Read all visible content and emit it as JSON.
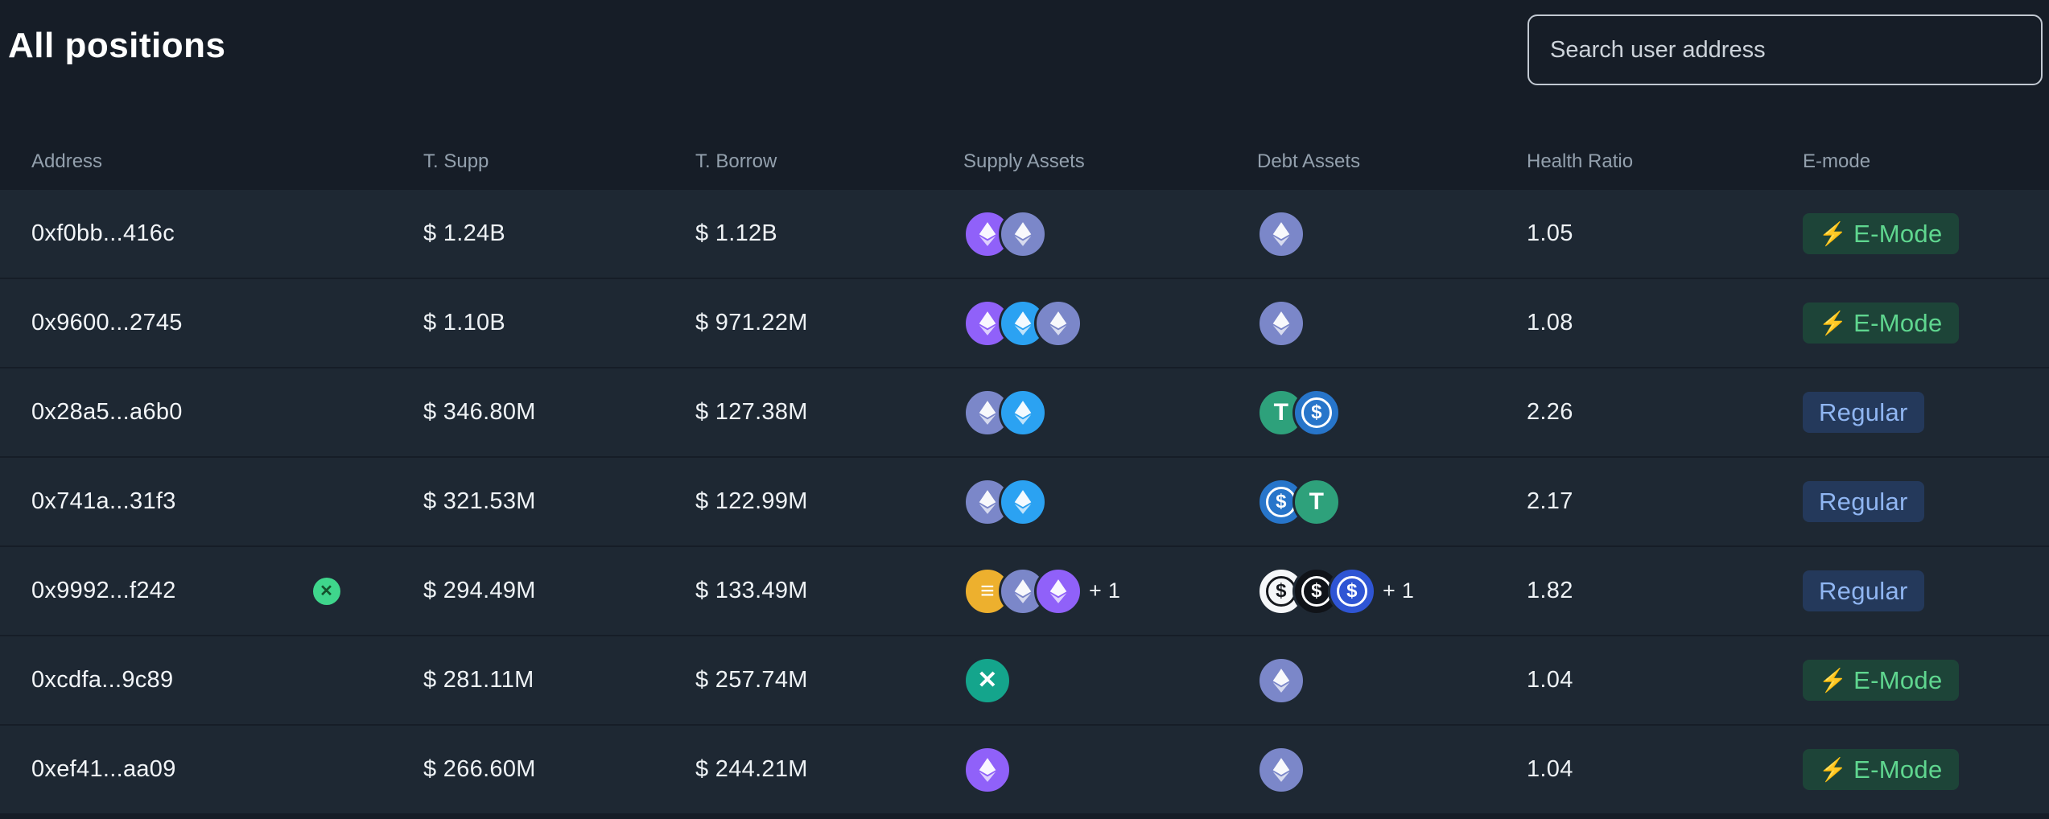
{
  "page": {
    "title": "All positions"
  },
  "search": {
    "placeholder": "Search user address"
  },
  "icons": {
    "bolt": "⚡"
  },
  "colors": {
    "background": "#161d27",
    "row": "#1e2833",
    "emode_bg": "#1d4438",
    "emode_text": "#5fd68f",
    "regular_bg": "#24395b",
    "regular_text": "#90b6f2"
  },
  "table": {
    "columns": [
      "Address",
      "T. Supp",
      "T. Borrow",
      "Supply Assets",
      "Debt Assets",
      "Health Ratio",
      "E-mode"
    ],
    "rows": [
      {
        "address": "0xf0bb...416c",
        "address_badge": false,
        "supp": "$ 1.24B",
        "borrow": "$ 1.12B",
        "supply_assets": [
          {
            "name": "wsteth",
            "bg": "#9061f9",
            "glyph": "eth"
          },
          {
            "name": "eth",
            "bg": "#7b87c9",
            "glyph": "eth"
          }
        ],
        "supply_extra": "",
        "debt_assets": [
          {
            "name": "eth",
            "bg": "#7b87c9",
            "glyph": "eth"
          }
        ],
        "debt_extra": "",
        "health": "1.05",
        "mode": "emode",
        "mode_label": "E-Mode"
      },
      {
        "address": "0x9600...2745",
        "address_badge": false,
        "supp": "$ 1.10B",
        "borrow": "$ 971.22M",
        "supply_assets": [
          {
            "name": "wsteth",
            "bg": "#9061f9",
            "glyph": "eth"
          },
          {
            "name": "steth",
            "bg": "#2ba2f2",
            "glyph": "eth"
          },
          {
            "name": "eth",
            "bg": "#7b87c9",
            "glyph": "eth"
          }
        ],
        "supply_extra": "",
        "debt_assets": [
          {
            "name": "eth",
            "bg": "#7b87c9",
            "glyph": "eth"
          }
        ],
        "debt_extra": "",
        "health": "1.08",
        "mode": "emode",
        "mode_label": "E-Mode"
      },
      {
        "address": "0x28a5...a6b0",
        "address_badge": false,
        "supp": "$ 346.80M",
        "borrow": "$ 127.38M",
        "supply_assets": [
          {
            "name": "eth",
            "bg": "#7b87c9",
            "glyph": "eth"
          },
          {
            "name": "steth",
            "bg": "#2ba2f2",
            "glyph": "eth"
          }
        ],
        "supply_extra": "",
        "debt_assets": [
          {
            "name": "usdt",
            "bg": "#2ea17b",
            "glyph": "T",
            "fg": "#ffffff"
          },
          {
            "name": "usdc",
            "bg": "#2775ca",
            "glyph": "dollar-ring",
            "fg": "#ffffff"
          }
        ],
        "debt_extra": "",
        "health": "2.26",
        "mode": "regular",
        "mode_label": "Regular"
      },
      {
        "address": "0x741a...31f3",
        "address_badge": false,
        "supp": "$ 321.53M",
        "borrow": "$ 122.99M",
        "supply_assets": [
          {
            "name": "eth",
            "bg": "#7b87c9",
            "glyph": "eth"
          },
          {
            "name": "steth",
            "bg": "#2ba2f2",
            "glyph": "eth"
          }
        ],
        "supply_extra": "",
        "debt_assets": [
          {
            "name": "usdc",
            "bg": "#2775ca",
            "glyph": "dollar-ring",
            "fg": "#ffffff"
          },
          {
            "name": "usdt",
            "bg": "#2ea17b",
            "glyph": "T",
            "fg": "#ffffff"
          }
        ],
        "debt_extra": "",
        "health": "2.17",
        "mode": "regular",
        "mode_label": "Regular"
      },
      {
        "address": "0x9992...f242",
        "address_badge": true,
        "supp": "$ 294.49M",
        "borrow": "$ 133.49M",
        "supply_assets": [
          {
            "name": "gold-token",
            "bg": "#edb02e",
            "glyph": "lines",
            "fg": "#ffffff"
          },
          {
            "name": "eth",
            "bg": "#7b87c9",
            "glyph": "eth"
          },
          {
            "name": "wsteth",
            "bg": "#9061f9",
            "glyph": "eth"
          }
        ],
        "supply_extra": "+ 1",
        "debt_assets": [
          {
            "name": "white-dollar",
            "bg": "#f5f7f9",
            "glyph": "dollar-ring",
            "fg": "#15181d"
          },
          {
            "name": "black-dollar",
            "bg": "#101318",
            "glyph": "dollar-ring",
            "fg": "#ffffff"
          },
          {
            "name": "blue-dollar",
            "bg": "#2f55d4",
            "glyph": "dollar-ring",
            "fg": "#ffffff"
          }
        ],
        "debt_extra": "+ 1",
        "health": "1.82",
        "mode": "regular",
        "mode_label": "Regular"
      },
      {
        "address": "0xcdfa...9c89",
        "address_badge": false,
        "supp": "$ 281.11M",
        "borrow": "$ 257.74M",
        "supply_assets": [
          {
            "name": "teal-token",
            "bg": "#14a58c",
            "glyph": "star",
            "fg": "#ffffff"
          }
        ],
        "supply_extra": "",
        "debt_assets": [
          {
            "name": "eth",
            "bg": "#7b87c9",
            "glyph": "eth"
          }
        ],
        "debt_extra": "",
        "health": "1.04",
        "mode": "emode",
        "mode_label": "E-Mode"
      },
      {
        "address": "0xef41...aa09",
        "address_badge": false,
        "supp": "$ 266.60M",
        "borrow": "$ 244.21M",
        "supply_assets": [
          {
            "name": "wsteth",
            "bg": "#9061f9",
            "glyph": "eth"
          }
        ],
        "supply_extra": "",
        "debt_assets": [
          {
            "name": "eth",
            "bg": "#7b87c9",
            "glyph": "eth"
          }
        ],
        "debt_extra": "",
        "health": "1.04",
        "mode": "emode",
        "mode_label": "E-Mode"
      }
    ]
  }
}
